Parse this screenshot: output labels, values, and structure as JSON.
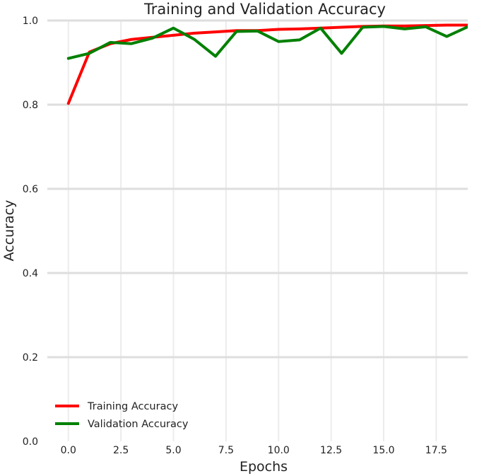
{
  "chart_data": {
    "type": "line",
    "title": "Training and Validation Accuracy",
    "xlabel": "Epochs",
    "ylabel": "Accuracy",
    "xlim": [
      -1,
      19
    ],
    "ylim": [
      0,
      1.0
    ],
    "x_ticks": [
      0.0,
      2.5,
      5.0,
      7.5,
      10.0,
      12.5,
      15.0,
      17.5
    ],
    "x_tick_labels": [
      "0.0",
      "2.5",
      "5.0",
      "7.5",
      "10.0",
      "12.5",
      "15.0",
      "17.5"
    ],
    "y_ticks": [
      0.0,
      0.2,
      0.4,
      0.6,
      0.8,
      1.0
    ],
    "y_tick_labels": [
      "0.0",
      "0.2",
      "0.4",
      "0.6",
      "0.8",
      "1.0"
    ],
    "grid": true,
    "legend_position": "bottom-left",
    "x": [
      0,
      1,
      2,
      3,
      4,
      5,
      6,
      7,
      8,
      9,
      10,
      11,
      12,
      13,
      14,
      15,
      16,
      17,
      18,
      19
    ],
    "series": [
      {
        "name": "Training Accuracy",
        "color": "#ff0000",
        "values": [
          0.803,
          0.925,
          0.945,
          0.955,
          0.96,
          0.965,
          0.97,
          0.973,
          0.976,
          0.976,
          0.979,
          0.98,
          0.982,
          0.984,
          0.986,
          0.987,
          0.987,
          0.988,
          0.989,
          0.989
        ]
      },
      {
        "name": "Validation Accuracy",
        "color": "#008000",
        "values": [
          0.91,
          0.922,
          0.948,
          0.945,
          0.958,
          0.982,
          0.955,
          0.915,
          0.974,
          0.975,
          0.95,
          0.954,
          0.982,
          0.922,
          0.984,
          0.986,
          0.98,
          0.985,
          0.962,
          0.985
        ]
      }
    ]
  }
}
